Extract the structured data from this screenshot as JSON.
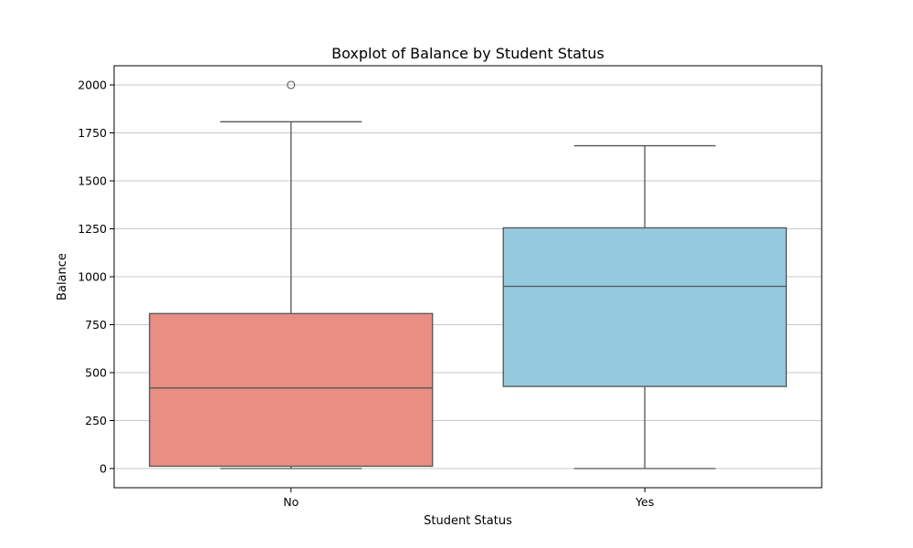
{
  "chart_data": {
    "type": "boxplot",
    "title": "Boxplot of Balance by Student Status",
    "xlabel": "Student Status",
    "ylabel": "Balance",
    "ylim": [
      -100,
      2100
    ],
    "yticks": [
      0,
      250,
      500,
      750,
      1000,
      1250,
      1500,
      1750,
      2000
    ],
    "grid": "horizontal",
    "categories": [
      "No",
      "Yes"
    ],
    "boxes": [
      {
        "category": "No",
        "whisker_low": 0,
        "q1": 12,
        "median": 420,
        "q3": 808,
        "whisker_high": 1808,
        "outliers": [
          2000
        ],
        "color": "#e98e82"
      },
      {
        "category": "Yes",
        "whisker_low": 0,
        "q1": 428,
        "median": 950,
        "q3": 1255,
        "whisker_high": 1683,
        "outliers": [],
        "color": "#95c9de"
      }
    ],
    "line_color": "#555555"
  }
}
